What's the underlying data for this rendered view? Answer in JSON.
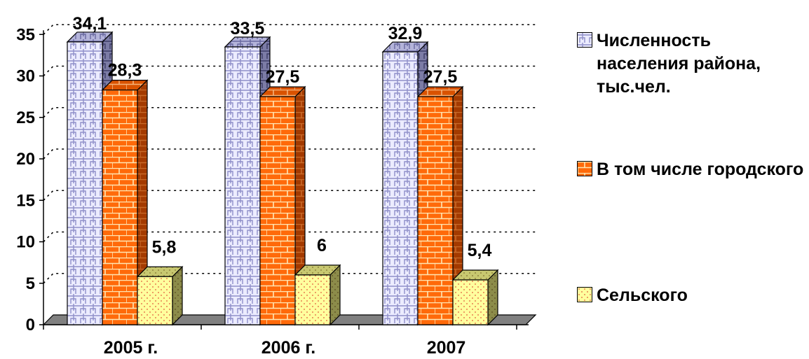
{
  "chart_data": {
    "type": "bar",
    "categories": [
      "2005 г.",
      "2006 г.",
      "2007"
    ],
    "series": [
      {
        "name": "Численность населения района, тыс.чел.",
        "values": [
          34.1,
          33.5,
          32.9
        ],
        "labels": [
          "34,1",
          "33,5",
          "32,9"
        ],
        "color": "#E6E6FA",
        "pattern": "lavender-weave"
      },
      {
        "name": "В том числе городского",
        "values": [
          28.3,
          27.5,
          27.5
        ],
        "labels": [
          "28,3",
          "27,5",
          "27,5"
        ],
        "color": "#FF6600",
        "pattern": "brick"
      },
      {
        "name": "Сельского",
        "values": [
          5.8,
          6,
          5.4
        ],
        "labels": [
          "5,8",
          "6",
          "5,4"
        ],
        "color": "#FFFF99",
        "pattern": "dots"
      }
    ],
    "y_ticks": [
      "0",
      "5",
      "10",
      "15",
      "20",
      "25",
      "30",
      "35"
    ],
    "ylim": [
      0,
      35
    ],
    "grid": true,
    "grid_style": "dotted",
    "three_d": true,
    "legend_position": "right"
  }
}
